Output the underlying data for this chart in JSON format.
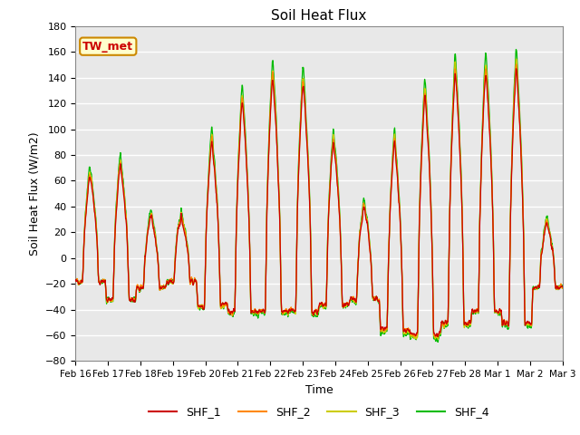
{
  "title": "Soil Heat Flux",
  "xlabel": "Time",
  "ylabel": "Soil Heat Flux (W/m2)",
  "ylim": [
    -80,
    180
  ],
  "yticks": [
    -80,
    -60,
    -40,
    -20,
    0,
    20,
    40,
    60,
    80,
    100,
    120,
    140,
    160,
    180
  ],
  "xtick_labels": [
    "Feb 16",
    "Feb 17",
    "Feb 18",
    "Feb 19",
    "Feb 20",
    "Feb 21",
    "Feb 22",
    "Feb 23",
    "Feb 24",
    "Feb 25",
    "Feb 26",
    "Feb 27",
    "Feb 28",
    "Mar 1",
    "Mar 2",
    "Mar 3"
  ],
  "colors": {
    "SHF_1": "#cc0000",
    "SHF_2": "#ff8800",
    "SHF_3": "#cccc00",
    "SHF_4": "#00bb00"
  },
  "annotation_text": "TW_met",
  "annotation_bg": "#ffffcc",
  "annotation_border": "#cc8800",
  "annotation_text_color": "#cc0000",
  "plot_bg": "#e8e8e8",
  "grid_color": "white",
  "n_points": 2000
}
